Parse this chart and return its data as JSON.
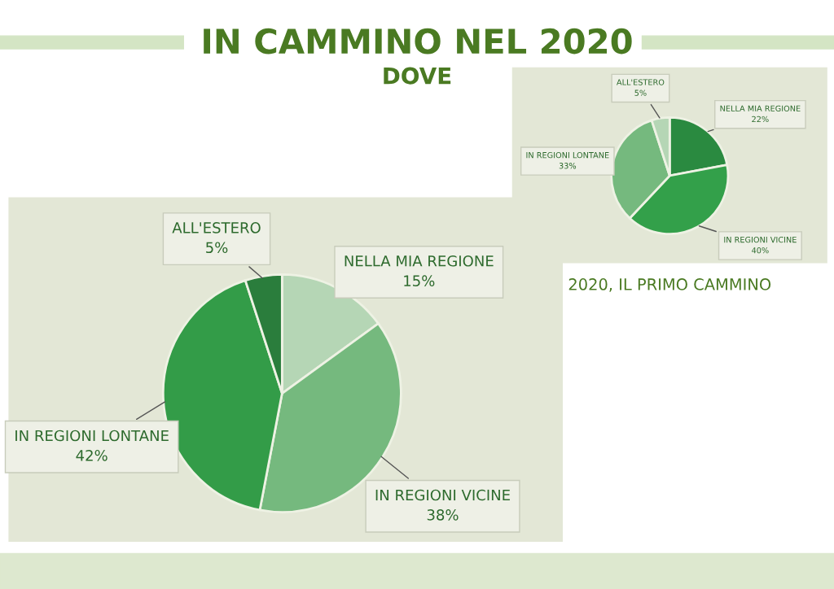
{
  "chart_data": [
    {
      "type": "pie",
      "title": "IN CAMMINO NEL 2020",
      "subtitle": "DOVE",
      "categories": [
        "NELLA MIA REGIONE",
        "IN REGIONI VICINE",
        "IN REGIONI LONTANE",
        "ALL'ESTERO"
      ],
      "values": [
        15,
        38,
        42,
        5
      ],
      "value_labels": [
        "15%",
        "38%",
        "42%",
        "5%"
      ],
      "colors": [
        "#b5d6b5",
        "#75b97e",
        "#339c48",
        "#2a7d3c"
      ]
    },
    {
      "type": "pie",
      "title": "2020, IL PRIMO CAMMINO",
      "categories": [
        "NELLA MIA REGIONE",
        "IN REGIONI VICINE",
        "IN REGIONI LONTANE",
        "ALL'ESTERO"
      ],
      "values": [
        22,
        40,
        33,
        5
      ],
      "value_labels": [
        "22%",
        "40%",
        "33%",
        "5%"
      ],
      "colors": [
        "#2a8a40",
        "#33a04a",
        "#75b97e",
        "#b5d6b5"
      ]
    }
  ]
}
